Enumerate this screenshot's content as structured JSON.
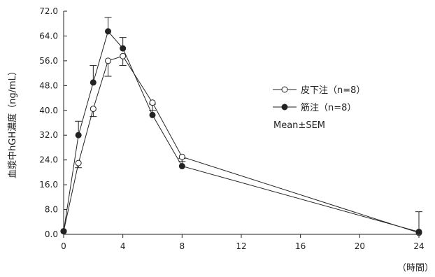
{
  "chart_data": {
    "type": "line",
    "ylabel": "血漿中hGH濃度（ng/mL）",
    "xlabel": "（時間）",
    "xlim": [
      0,
      24
    ],
    "ylim": [
      0,
      72
    ],
    "x_ticks": [
      0,
      4,
      8,
      12,
      16,
      20,
      24
    ],
    "y_ticks": [
      0,
      8,
      16,
      24,
      32,
      40,
      48,
      56,
      64,
      72
    ],
    "y_tick_labels": [
      "0.0",
      "8.0",
      "16.0",
      "24.0",
      "32.0",
      "40.0",
      "48.0",
      "56.0",
      "64.0",
      "72.0"
    ],
    "x_tick_labels": [
      "0",
      "4",
      "8",
      "12",
      "16",
      "20",
      "24"
    ],
    "grid": false,
    "legend_position": "right",
    "legend_note": "Mean±SEM",
    "series": [
      {
        "name": "皮下注（n=8）",
        "marker": "open-circle",
        "color": "#222222",
        "x": [
          0,
          1,
          2,
          3,
          4,
          6,
          8,
          24
        ],
        "y": [
          1.0,
          23.0,
          40.5,
          56.0,
          57.5,
          42.5,
          25.0,
          0.5
        ],
        "err": [
          0,
          1.5,
          2.5,
          5.0,
          3.0,
          2.5,
          1.5,
          0
        ]
      },
      {
        "name": "筋注（n=8）",
        "marker": "filled-circle",
        "color": "#222222",
        "x": [
          0,
          1,
          2,
          3,
          4,
          6,
          8,
          24
        ],
        "y": [
          1.0,
          32.0,
          49.0,
          65.5,
          60.0,
          38.5,
          22.0,
          0.8
        ],
        "err": [
          0,
          4.5,
          5.5,
          4.5,
          3.5,
          3.5,
          2.5,
          6.5
        ]
      }
    ]
  }
}
